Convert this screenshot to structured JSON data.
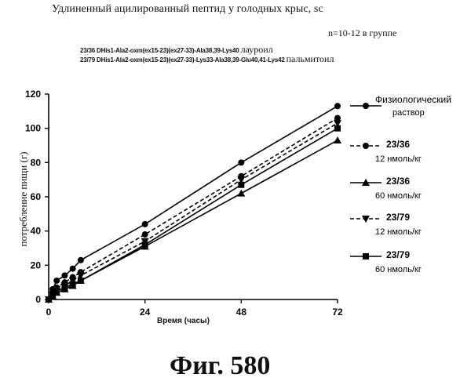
{
  "header": {
    "title": "Удлиненный ацилированный пептид у голодных крыс, sc",
    "group_size": "n=10-12 в группе",
    "compound_1": "23/36 DHis1-Ala2-oxm(ex15-23)(ex27-33)-Ala38,39-Lys40",
    "compound_1_tag": "лауроил",
    "compound_2": "23/79 DHis1-Ala2-oxm(ex15-23)(ex27-33)-Lys33-Ala38,39-Glu40,41-Lys42",
    "compound_2_tag": "пальмитоил"
  },
  "figure_label": "Фиг. 580",
  "chart_data": {
    "type": "line",
    "xlabel": "Время (часы)",
    "ylabel": "потребление пищи (г)",
    "xlim": [
      0,
      72
    ],
    "ylim": [
      0,
      120
    ],
    "xticks": [
      "0",
      "24",
      "48",
      "72"
    ],
    "yticks": [
      "0",
      "20",
      "40",
      "60",
      "80",
      "100",
      "120"
    ],
    "grid": false,
    "legend_position": "right",
    "series": [
      {
        "name": "Физиологический раствор",
        "marker": "circle",
        "dash": "solid",
        "x": [
          0,
          1,
          2,
          4,
          6,
          8,
          24,
          48,
          72
        ],
        "y": [
          0,
          6,
          11,
          14,
          18,
          23,
          44,
          80,
          113
        ]
      },
      {
        "name": "23/36 12 нмоль/кг",
        "marker": "circle",
        "dash": "dashed",
        "x": [
          0,
          1,
          2,
          4,
          6,
          8,
          24,
          48,
          72
        ],
        "y": [
          0,
          4,
          7,
          10,
          13,
          16,
          38,
          72,
          106
        ]
      },
      {
        "name": "23/36 60 нмоль/кг",
        "marker": "triangle",
        "dash": "solid",
        "x": [
          0,
          1,
          2,
          4,
          6,
          8,
          24,
          48,
          72
        ],
        "y": [
          0,
          2,
          4,
          6,
          8,
          11,
          31,
          62,
          93
        ]
      },
      {
        "name": "23/79 12 нмоль/кг",
        "marker": "triangle-down",
        "dash": "dashed",
        "x": [
          0,
          1,
          2,
          4,
          6,
          8,
          24,
          48,
          72
        ],
        "y": [
          0,
          3,
          6,
          8,
          11,
          14,
          34,
          70,
          103
        ]
      },
      {
        "name": "23/79 60 нмоль/кг",
        "marker": "square",
        "dash": "solid",
        "x": [
          0,
          1,
          2,
          4,
          6,
          8,
          24,
          48,
          72
        ],
        "y": [
          0,
          2,
          5,
          7,
          9,
          11,
          32,
          67,
          100
        ]
      }
    ],
    "legend": [
      {
        "line1": "Физиологический",
        "line2": "раствор"
      },
      {
        "line1": "23/36",
        "line2": "12 нмоль/кг"
      },
      {
        "line1": "23/36",
        "line2": "60 нмоль/кг"
      },
      {
        "line1": "23/79",
        "line2": "12 нмоль/кг"
      },
      {
        "line1": "23/79",
        "line2": "60 нмоль/кг"
      }
    ]
  }
}
